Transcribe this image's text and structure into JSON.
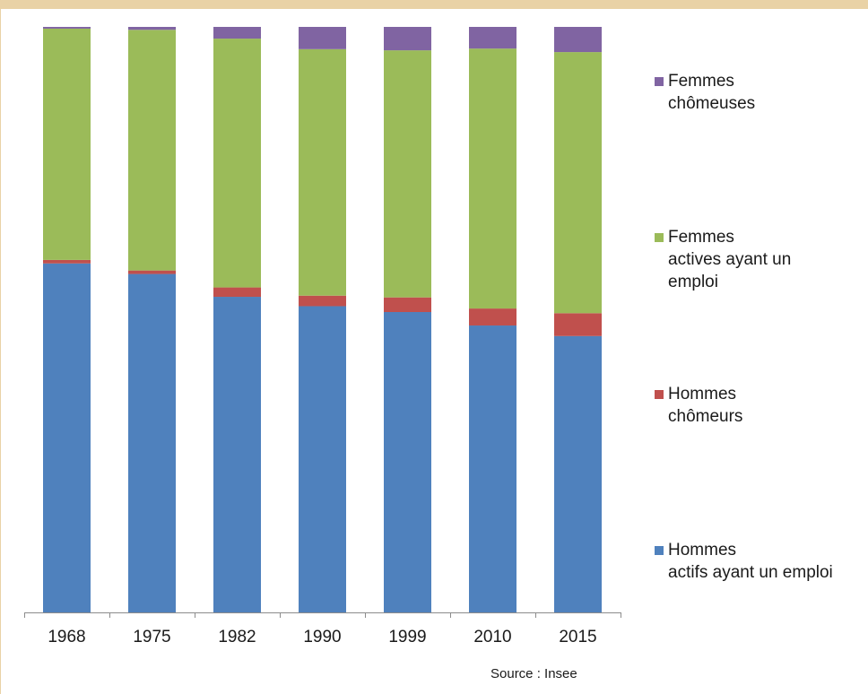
{
  "chart_data": {
    "type": "bar",
    "stacked": true,
    "normalized": true,
    "categories": [
      "1968",
      "1975",
      "1982",
      "1990",
      "1999",
      "2010",
      "2015"
    ],
    "series": [
      {
        "name": "Hommes actifs ayant un emploi",
        "label_lines": [
          "Hommes",
          "actifs ayant un emploi"
        ],
        "color": "#4f81bd",
        "values": [
          59.6,
          57.8,
          53.9,
          52.3,
          51.3,
          49.0,
          47.2
        ]
      },
      {
        "name": "Hommes chômeurs",
        "label_lines": [
          "Hommes",
          "chômeurs"
        ],
        "color": "#c0504d",
        "values": [
          0.6,
          0.6,
          1.6,
          1.8,
          2.5,
          2.9,
          3.9
        ]
      },
      {
        "name": "Femmes actives ayant un emploi",
        "label_lines": [
          "Femmes",
          "actives ayant un",
          "emploi"
        ],
        "color": "#9bbb59",
        "values": [
          39.5,
          41.1,
          42.5,
          42.1,
          42.2,
          44.4,
          44.6
        ]
      },
      {
        "name": "Femmes chômeuses",
        "label_lines": [
          "Femmes",
          "chômeuses"
        ],
        "color": "#8064a2",
        "values": [
          0.3,
          0.5,
          2.0,
          3.8,
          4.0,
          3.7,
          4.3
        ]
      }
    ],
    "ylim": [
      0,
      100
    ],
    "grid": false,
    "legend_position": "right",
    "source": "Source : Insee"
  }
}
